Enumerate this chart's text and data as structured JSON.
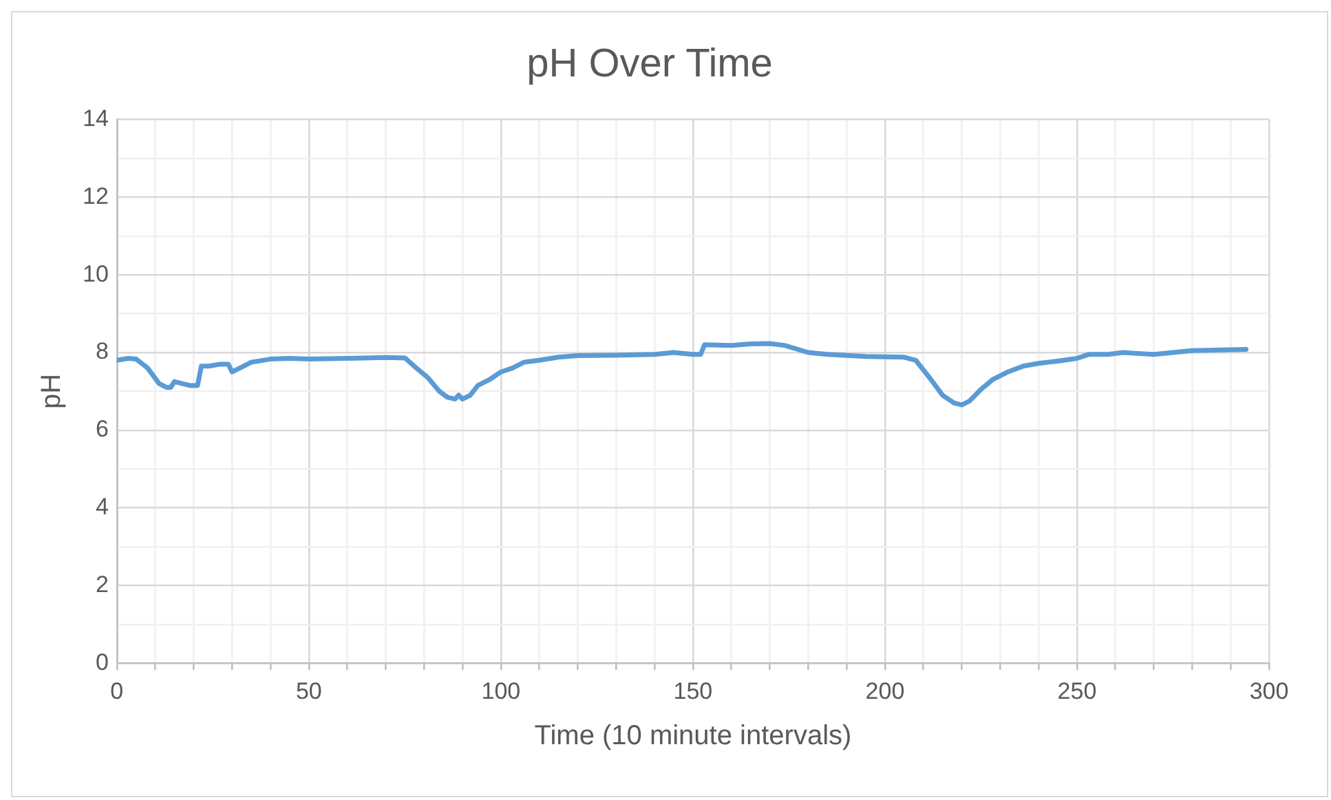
{
  "chart_data": {
    "type": "line",
    "title": "pH Over Time",
    "xlabel": "Time (10 minute intervals)",
    "ylabel": "pH",
    "x": [
      0,
      3,
      5,
      8,
      11,
      13,
      14,
      15,
      17,
      19,
      21,
      22,
      24,
      27,
      29,
      30,
      32,
      35,
      40,
      45,
      50,
      60,
      70,
      75,
      78,
      81,
      84,
      86,
      88,
      89,
      90,
      92,
      94,
      97,
      100,
      103,
      106,
      110,
      115,
      120,
      130,
      140,
      145,
      150,
      152,
      153,
      160,
      165,
      170,
      174,
      180,
      185,
      195,
      205,
      208,
      212,
      215,
      218,
      220,
      222,
      225,
      228,
      232,
      236,
      240,
      245,
      250,
      253,
      258,
      262,
      265,
      270,
      275,
      280,
      290,
      294
    ],
    "series": [
      {
        "color": "#5b9bd5",
        "values": [
          7.8,
          7.85,
          7.83,
          7.6,
          7.2,
          7.1,
          7.1,
          7.25,
          7.2,
          7.15,
          7.15,
          7.65,
          7.65,
          7.7,
          7.7,
          7.5,
          7.6,
          7.75,
          7.83,
          7.85,
          7.83,
          7.85,
          7.87,
          7.86,
          7.6,
          7.35,
          7.0,
          6.85,
          6.8,
          6.9,
          6.8,
          6.9,
          7.15,
          7.3,
          7.5,
          7.6,
          7.75,
          7.8,
          7.88,
          7.92,
          7.93,
          7.95,
          8.0,
          7.95,
          7.95,
          8.2,
          8.18,
          8.22,
          8.23,
          8.18,
          8.0,
          7.95,
          7.9,
          7.88,
          7.8,
          7.3,
          6.9,
          6.7,
          6.65,
          6.75,
          7.05,
          7.3,
          7.5,
          7.65,
          7.72,
          7.78,
          7.85,
          7.95,
          7.95,
          8.0,
          7.98,
          7.95,
          8.0,
          8.05,
          8.07,
          8.08
        ]
      }
    ],
    "xlim": [
      0,
      300
    ],
    "xticks": [
      0,
      {
        "value": 10,
        "label": null
      },
      {
        "value": 20,
        "label": null
      },
      {
        "value": 30,
        "label": null
      },
      {
        "value": 40,
        "label": null
      },
      50,
      {
        "value": 60,
        "label": null
      },
      {
        "value": 70,
        "label": null
      },
      {
        "value": 80,
        "label": null
      },
      {
        "value": 90,
        "label": null
      },
      100,
      {
        "value": 110,
        "label": null
      },
      {
        "value": 120,
        "label": null
      },
      {
        "value": 130,
        "label": null
      },
      {
        "value": 140,
        "label": null
      },
      150,
      {
        "value": 160,
        "label": null
      },
      {
        "value": 170,
        "label": null
      },
      {
        "value": 180,
        "label": null
      },
      {
        "value": 190,
        "label": null
      },
      200,
      {
        "value": 210,
        "label": null
      },
      {
        "value": 220,
        "label": null
      },
      {
        "value": 230,
        "label": null
      },
      {
        "value": 240,
        "label": null
      },
      250,
      {
        "value": 260,
        "label": null
      },
      {
        "value": 270,
        "label": null
      },
      {
        "value": 280,
        "label": null
      },
      {
        "value": 290,
        "label": null
      },
      300
    ],
    "ylim": [
      0,
      14
    ],
    "yticks": [
      0,
      {
        "value": 1,
        "label": null
      },
      2,
      {
        "value": 3,
        "label": null
      },
      4,
      {
        "value": 5,
        "label": null
      },
      6,
      {
        "value": 7,
        "label": null
      },
      8,
      {
        "value": 9,
        "label": null
      },
      10,
      {
        "value": 11,
        "label": null
      },
      12,
      {
        "value": 13,
        "label": null
      },
      14
    ],
    "grid": true,
    "legend": false,
    "marker": "none",
    "line_style": "solid"
  }
}
